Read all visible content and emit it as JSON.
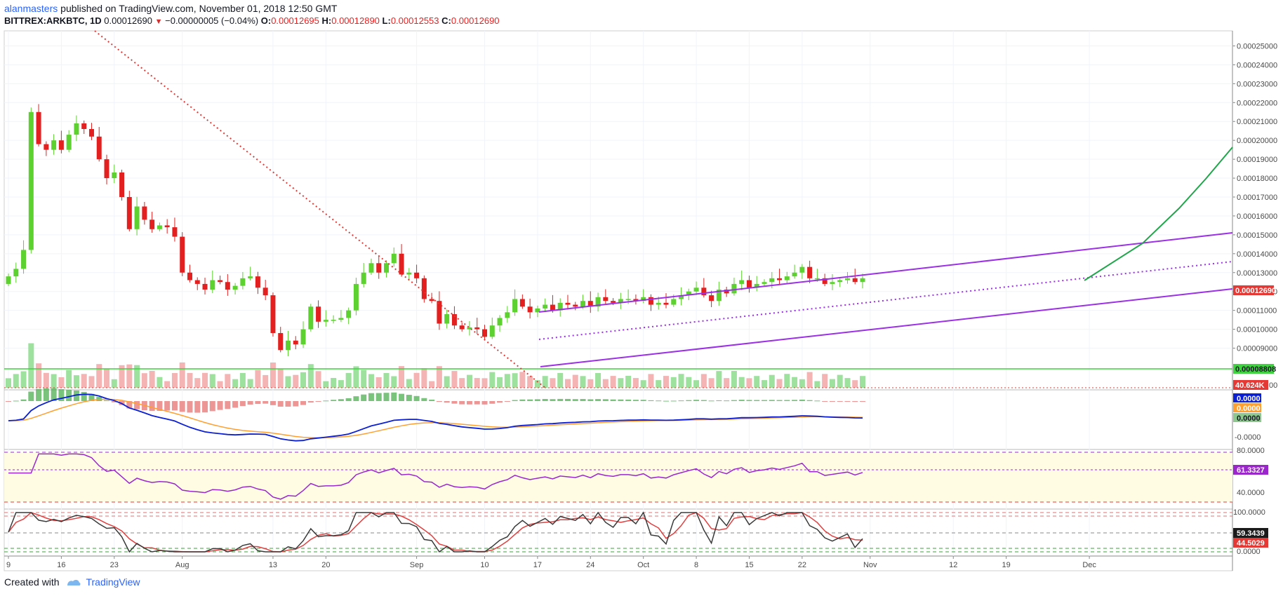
{
  "header": {
    "author": "alanmasters",
    "published_text": "published on TradingView.com, November 01, 2018 12:50 GMT",
    "symbol": "BITTREX:ARKBTC, 1D",
    "last": "0.00012690",
    "change": "−0.00000005 (−0.04%)",
    "o_label": "O:",
    "o_value": "0.00012695",
    "h_label": "H:",
    "h_value": "0.00012890",
    "l_label": "L:",
    "l_value": "0.00012553",
    "c_label": "C:",
    "c_value": "0.00012690"
  },
  "footer": {
    "created_with": "Created with",
    "brand": "TradingView"
  },
  "colors": {
    "up": "#5dd12f",
    "down": "#e32020",
    "channel": "#9b30e6",
    "trend_red": "#e53935",
    "projection": "#20a64a",
    "macd": "#0b1fd4",
    "signal": "#ff9f2f",
    "macd_bg": "#7fa8e8",
    "rsi": "#9b27cc",
    "stoch_k": "#3a3a3a",
    "stoch_d": "#e04040",
    "support": "#41d241",
    "vol_up": "#9ee19e",
    "vol_down": "#f4b4b4"
  },
  "chart_data": {
    "type": "candlestick",
    "title": "BITTREX:ARKBTC, 1D",
    "ylim": [
      8.5e-05,
      0.000255
    ],
    "price_ticks": [
      "0.00025000",
      "0.00024000",
      "0.00023000",
      "0.00022000",
      "0.00021000",
      "0.00020000",
      "0.00019000",
      "0.00018000",
      "0.00017000",
      "0.00016000",
      "0.00015000",
      "0.00014000",
      "0.00013000",
      "0.00012000",
      "0.00011000",
      "0.00010000",
      "0.00009000"
    ],
    "x_labels": [
      {
        "day": 0,
        "label": "9"
      },
      {
        "day": 7,
        "label": "16"
      },
      {
        "day": 14,
        "label": "23"
      },
      {
        "day": 23,
        "label": "Aug"
      },
      {
        "day": 35,
        "label": "13"
      },
      {
        "day": 42,
        "label": "20"
      },
      {
        "day": 54,
        "label": "Sep"
      },
      {
        "day": 63,
        "label": "10"
      },
      {
        "day": 70,
        "label": "17"
      },
      {
        "day": 77,
        "label": "24"
      },
      {
        "day": 84,
        "label": "Oct"
      },
      {
        "day": 91,
        "label": "8"
      },
      {
        "day": 98,
        "label": "15"
      },
      {
        "day": 105,
        "label": "22"
      },
      {
        "day": 114,
        "label": "Nov"
      },
      {
        "day": 125,
        "label": "12"
      },
      {
        "day": 132,
        "label": "19"
      },
      {
        "day": 143,
        "label": "Dec"
      }
    ],
    "last_price_tag": "0.00012690",
    "support_tag": "0.00008808",
    "volume_tag": "40.624K",
    "volume_tag_suffix": "00",
    "macd_tags": [
      "0.0000",
      "0.0000",
      "0.0000"
    ],
    "macd_axis_tag": "-0.0000",
    "rsi_ticks": [
      "80.0000",
      "40.0000"
    ],
    "rsi_tag": "61.3327",
    "stoch_ticks": [
      "100.0000",
      "0.0000"
    ],
    "stoch_k_tag": "59.3439",
    "stoch_d_tag": "44.5029",
    "closes": [
      12.8,
      13.2,
      14.2,
      21.5,
      19.8,
      19.5,
      20.0,
      19.5,
      20.3,
      20.9,
      20.6,
      20.2,
      19.0,
      18.0,
      18.3,
      17.0,
      15.3,
      16.5,
      15.8,
      15.3,
      15.5,
      15.4,
      14.9,
      13.0,
      12.6,
      12.4,
      12.1,
      12.6,
      12.5,
      12.1,
      12.3,
      12.7,
      12.8,
      12.2,
      11.8,
      9.8,
      8.9,
      9.4,
      9.2,
      10.0,
      11.2,
      10.4,
      10.5,
      10.5,
      10.6,
      11.0,
      12.4,
      13.0,
      13.5,
      13.0,
      13.5,
      14.0,
      12.9,
      13.0,
      12.7,
      11.6,
      11.5,
      10.3,
      10.8,
      10.2,
      10.0,
      10.1,
      10.0,
      9.6,
      10.2,
      10.6,
      10.9,
      11.6,
      11.2,
      10.9,
      11.1,
      11.3,
      11.0,
      11.4,
      11.3,
      11.2,
      11.5,
      11.2,
      11.7,
      11.5,
      11.4,
      11.6,
      11.6,
      11.5,
      11.7,
      11.3,
      11.4,
      11.3,
      11.6,
      11.8,
      12.0,
      12.2,
      11.8,
      11.5,
      12.1,
      11.9,
      12.4,
      12.6,
      12.2,
      12.4,
      12.5,
      12.7,
      12.6,
      12.8,
      13.0,
      13.3,
      12.7,
      12.7,
      12.4,
      12.5,
      12.6,
      12.7,
      12.5,
      12.7
    ]
  }
}
